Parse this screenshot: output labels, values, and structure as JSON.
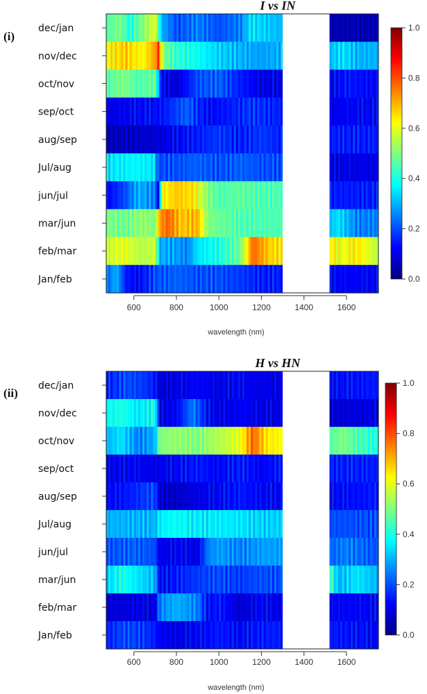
{
  "chart_data": [
    {
      "type": "heatmap",
      "panel_label": "(i)",
      "title": "I vs IN",
      "xlabel": "wavelength (nm)",
      "xlim": [
        470,
        1750
      ],
      "x_ticks": [
        600,
        800,
        1000,
        1200,
        1400,
        1600
      ],
      "gap": [
        1300,
        1515
      ],
      "rows": [
        "dec/jan",
        "nov/dec",
        "oct/nov",
        "sep/oct",
        "aug/sep",
        "Jul/aug",
        "jun/jul",
        "mar/jun",
        "feb/mar",
        "Jan/feb"
      ],
      "colorbar": {
        "range": [
          0,
          1
        ],
        "ticks": [
          "0.0",
          "0.2",
          "0.4",
          "0.6",
          "0.8",
          "1.0"
        ]
      },
      "row_segments": [
        [
          [
            470,
            0.45
          ],
          [
            530,
            0.5
          ],
          [
            580,
            0.4
          ],
          [
            640,
            0.5
          ],
          [
            700,
            0.6
          ],
          [
            730,
            0.3
          ],
          [
            800,
            0.2
          ],
          [
            900,
            0.25
          ],
          [
            1000,
            0.2
          ],
          [
            1100,
            0.25
          ],
          [
            1150,
            0.35
          ],
          [
            1300,
            0.3
          ],
          [
            1515,
            0.05
          ],
          [
            1750,
            0.05
          ]
        ],
        [
          [
            470,
            0.62
          ],
          [
            560,
            0.68
          ],
          [
            640,
            0.62
          ],
          [
            700,
            0.72
          ],
          [
            715,
            0.82
          ],
          [
            740,
            0.5
          ],
          [
            800,
            0.42
          ],
          [
            900,
            0.38
          ],
          [
            1000,
            0.33
          ],
          [
            1100,
            0.3
          ],
          [
            1200,
            0.28
          ],
          [
            1300,
            0.3
          ],
          [
            1515,
            0.3
          ],
          [
            1580,
            0.35
          ],
          [
            1650,
            0.3
          ],
          [
            1750,
            0.3
          ]
        ],
        [
          [
            470,
            0.45
          ],
          [
            550,
            0.5
          ],
          [
            620,
            0.45
          ],
          [
            700,
            0.48
          ],
          [
            730,
            0.12
          ],
          [
            800,
            0.08
          ],
          [
            900,
            0.2
          ],
          [
            1000,
            0.22
          ],
          [
            1100,
            0.15
          ],
          [
            1200,
            0.1
          ],
          [
            1300,
            0.1
          ],
          [
            1515,
            0.1
          ],
          [
            1600,
            0.15
          ],
          [
            1750,
            0.12
          ]
        ],
        [
          [
            470,
            0.1
          ],
          [
            600,
            0.12
          ],
          [
            700,
            0.13
          ],
          [
            750,
            0.15
          ],
          [
            850,
            0.22
          ],
          [
            950,
            0.12
          ],
          [
            1050,
            0.15
          ],
          [
            1150,
            0.18
          ],
          [
            1300,
            0.15
          ],
          [
            1515,
            0.1
          ],
          [
            1600,
            0.12
          ],
          [
            1750,
            0.12
          ]
        ],
        [
          [
            470,
            0.05
          ],
          [
            600,
            0.07
          ],
          [
            700,
            0.08
          ],
          [
            800,
            0.12
          ],
          [
            900,
            0.15
          ],
          [
            1000,
            0.18
          ],
          [
            1100,
            0.15
          ],
          [
            1200,
            0.18
          ],
          [
            1300,
            0.15
          ],
          [
            1515,
            0.15
          ],
          [
            1750,
            0.15
          ]
        ],
        [
          [
            470,
            0.35
          ],
          [
            600,
            0.37
          ],
          [
            700,
            0.35
          ],
          [
            710,
            0.2
          ],
          [
            800,
            0.2
          ],
          [
            900,
            0.22
          ],
          [
            1000,
            0.2
          ],
          [
            1100,
            0.22
          ],
          [
            1200,
            0.2
          ],
          [
            1300,
            0.2
          ],
          [
            1515,
            0.1
          ],
          [
            1750,
            0.1
          ]
        ],
        [
          [
            470,
            0.12
          ],
          [
            560,
            0.2
          ],
          [
            620,
            0.3
          ],
          [
            700,
            0.25
          ],
          [
            720,
            0.05
          ],
          [
            730,
            0.62
          ],
          [
            800,
            0.68
          ],
          [
            880,
            0.65
          ],
          [
            950,
            0.5
          ],
          [
            1000,
            0.45
          ],
          [
            1100,
            0.47
          ],
          [
            1200,
            0.45
          ],
          [
            1300,
            0.45
          ],
          [
            1515,
            0.15
          ],
          [
            1750,
            0.15
          ]
        ],
        [
          [
            470,
            0.5
          ],
          [
            560,
            0.48
          ],
          [
            640,
            0.52
          ],
          [
            700,
            0.5
          ],
          [
            720,
            0.72
          ],
          [
            760,
            0.78
          ],
          [
            820,
            0.68
          ],
          [
            900,
            0.7
          ],
          [
            950,
            0.5
          ],
          [
            1000,
            0.48
          ],
          [
            1100,
            0.45
          ],
          [
            1200,
            0.45
          ],
          [
            1300,
            0.45
          ],
          [
            1515,
            0.3
          ],
          [
            1560,
            0.35
          ],
          [
            1650,
            0.25
          ],
          [
            1750,
            0.25
          ]
        ],
        [
          [
            470,
            0.58
          ],
          [
            560,
            0.6
          ],
          [
            640,
            0.55
          ],
          [
            700,
            0.58
          ],
          [
            720,
            0.3
          ],
          [
            800,
            0.28
          ],
          [
            850,
            0.25
          ],
          [
            900,
            0.35
          ],
          [
            1000,
            0.4
          ],
          [
            1100,
            0.48
          ],
          [
            1160,
            0.78
          ],
          [
            1200,
            0.72
          ],
          [
            1260,
            0.65
          ],
          [
            1300,
            0.65
          ],
          [
            1515,
            0.65
          ],
          [
            1580,
            0.6
          ],
          [
            1650,
            0.65
          ],
          [
            1750,
            0.55
          ]
        ],
        [
          [
            470,
            0.22
          ],
          [
            520,
            0.3
          ],
          [
            560,
            0.15
          ],
          [
            620,
            0.12
          ],
          [
            700,
            0.2
          ],
          [
            800,
            0.22
          ],
          [
            900,
            0.2
          ],
          [
            1000,
            0.2
          ],
          [
            1100,
            0.18
          ],
          [
            1200,
            0.15
          ],
          [
            1300,
            0.15
          ],
          [
            1515,
            0.12
          ],
          [
            1750,
            0.12
          ]
        ]
      ]
    },
    {
      "type": "heatmap",
      "panel_label": "(ii)",
      "title": "H vs HN",
      "xlabel": "wavelength (nm)",
      "xlim": [
        470,
        1750
      ],
      "x_ticks": [
        600,
        800,
        1000,
        1200,
        1400,
        1600
      ],
      "gap": [
        1300,
        1515
      ],
      "rows": [
        "dec/jan",
        "nov/dec",
        "oct/nov",
        "sep/oct",
        "aug/sep",
        "Jul/aug",
        "jun/jul",
        "mar/jun",
        "feb/mar",
        "Jan/feb"
      ],
      "colorbar": {
        "range": [
          0,
          1
        ],
        "ticks": [
          "0.0",
          "0.2",
          "0.4",
          "0.6",
          "0.8",
          "1.0"
        ]
      },
      "row_segments": [
        [
          [
            470,
            0.15
          ],
          [
            560,
            0.2
          ],
          [
            640,
            0.18
          ],
          [
            700,
            0.15
          ],
          [
            720,
            0.08
          ],
          [
            800,
            0.1
          ],
          [
            900,
            0.12
          ],
          [
            1000,
            0.1
          ],
          [
            1100,
            0.12
          ],
          [
            1200,
            0.1
          ],
          [
            1300,
            0.1
          ],
          [
            1515,
            0.12
          ],
          [
            1750,
            0.15
          ]
        ],
        [
          [
            470,
            0.38
          ],
          [
            550,
            0.4
          ],
          [
            620,
            0.35
          ],
          [
            700,
            0.4
          ],
          [
            720,
            0.1
          ],
          [
            800,
            0.12
          ],
          [
            880,
            0.25
          ],
          [
            950,
            0.12
          ],
          [
            1000,
            0.1
          ],
          [
            1100,
            0.12
          ],
          [
            1200,
            0.1
          ],
          [
            1300,
            0.1
          ],
          [
            1515,
            0.08
          ],
          [
            1750,
            0.1
          ]
        ],
        [
          [
            470,
            0.3
          ],
          [
            540,
            0.35
          ],
          [
            620,
            0.25
          ],
          [
            700,
            0.3
          ],
          [
            720,
            0.5
          ],
          [
            800,
            0.52
          ],
          [
            900,
            0.5
          ],
          [
            1000,
            0.55
          ],
          [
            1100,
            0.6
          ],
          [
            1160,
            0.78
          ],
          [
            1220,
            0.65
          ],
          [
            1300,
            0.62
          ],
          [
            1515,
            0.45
          ],
          [
            1580,
            0.5
          ],
          [
            1650,
            0.45
          ],
          [
            1750,
            0.4
          ]
        ],
        [
          [
            470,
            0.1
          ],
          [
            600,
            0.12
          ],
          [
            700,
            0.1
          ],
          [
            800,
            0.12
          ],
          [
            900,
            0.15
          ],
          [
            1000,
            0.12
          ],
          [
            1100,
            0.15
          ],
          [
            1200,
            0.12
          ],
          [
            1300,
            0.15
          ],
          [
            1515,
            0.15
          ],
          [
            1750,
            0.15
          ]
        ],
        [
          [
            470,
            0.12
          ],
          [
            580,
            0.15
          ],
          [
            700,
            0.2
          ],
          [
            720,
            0.08
          ],
          [
            800,
            0.07
          ],
          [
            900,
            0.1
          ],
          [
            1000,
            0.12
          ],
          [
            1100,
            0.15
          ],
          [
            1200,
            0.12
          ],
          [
            1300,
            0.12
          ],
          [
            1515,
            0.12
          ],
          [
            1750,
            0.15
          ]
        ],
        [
          [
            470,
            0.3
          ],
          [
            600,
            0.3
          ],
          [
            700,
            0.3
          ],
          [
            720,
            0.36
          ],
          [
            800,
            0.38
          ],
          [
            900,
            0.36
          ],
          [
            1000,
            0.36
          ],
          [
            1100,
            0.35
          ],
          [
            1200,
            0.33
          ],
          [
            1300,
            0.33
          ],
          [
            1515,
            0.2
          ],
          [
            1750,
            0.2
          ]
        ],
        [
          [
            470,
            0.2
          ],
          [
            600,
            0.22
          ],
          [
            700,
            0.2
          ],
          [
            720,
            0.1
          ],
          [
            800,
            0.12
          ],
          [
            900,
            0.1
          ],
          [
            950,
            0.25
          ],
          [
            1000,
            0.28
          ],
          [
            1100,
            0.25
          ],
          [
            1200,
            0.28
          ],
          [
            1300,
            0.28
          ],
          [
            1515,
            0.22
          ],
          [
            1600,
            0.25
          ],
          [
            1750,
            0.2
          ]
        ],
        [
          [
            470,
            0.32
          ],
          [
            540,
            0.4
          ],
          [
            620,
            0.35
          ],
          [
            700,
            0.3
          ],
          [
            720,
            0.12
          ],
          [
            800,
            0.15
          ],
          [
            900,
            0.18
          ],
          [
            1000,
            0.2
          ],
          [
            1100,
            0.18
          ],
          [
            1200,
            0.2
          ],
          [
            1300,
            0.2
          ],
          [
            1515,
            0.5
          ],
          [
            1560,
            0.3
          ],
          [
            1650,
            0.35
          ],
          [
            1750,
            0.3
          ]
        ],
        [
          [
            470,
            0.08
          ],
          [
            600,
            0.1
          ],
          [
            700,
            0.1
          ],
          [
            720,
            0.25
          ],
          [
            800,
            0.3
          ],
          [
            900,
            0.25
          ],
          [
            950,
            0.12
          ],
          [
            1000,
            0.15
          ],
          [
            1100,
            0.08
          ],
          [
            1200,
            0.12
          ],
          [
            1300,
            0.1
          ],
          [
            1515,
            0.12
          ],
          [
            1750,
            0.12
          ]
        ],
        [
          [
            470,
            0.15
          ],
          [
            560,
            0.2
          ],
          [
            640,
            0.18
          ],
          [
            700,
            0.15
          ],
          [
            720,
            0.12
          ],
          [
            800,
            0.1
          ],
          [
            900,
            0.12
          ],
          [
            1000,
            0.15
          ],
          [
            1100,
            0.12
          ],
          [
            1200,
            0.15
          ],
          [
            1300,
            0.15
          ],
          [
            1515,
            0.15
          ],
          [
            1750,
            0.12
          ]
        ]
      ]
    }
  ]
}
